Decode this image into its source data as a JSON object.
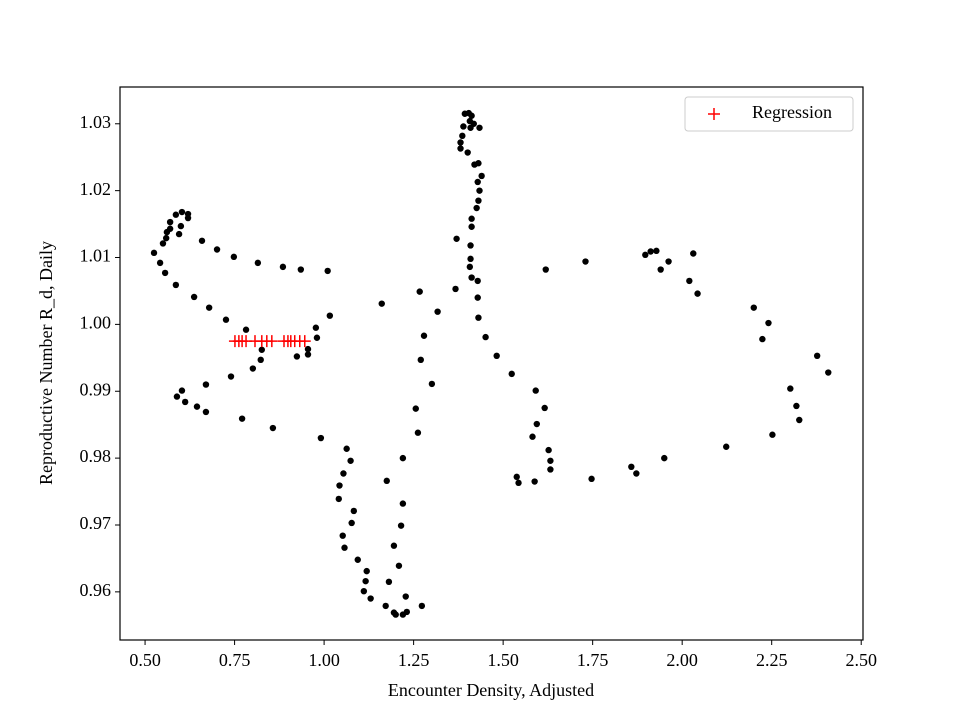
{
  "chart_data": {
    "type": "scatter",
    "xlabel": "Encounter Density, Adjusted",
    "ylabel": "Reproductive Number R_d, Daily",
    "xlim": [
      0.43,
      2.505
    ],
    "ylim": [
      0.9528,
      1.0355
    ],
    "xticks": [
      {
        "value": 0.5,
        "label": "0.50"
      },
      {
        "value": 0.75,
        "label": "0.75"
      },
      {
        "value": 1.0,
        "label": "1.00"
      },
      {
        "value": 1.25,
        "label": "1.25"
      },
      {
        "value": 1.5,
        "label": "1.50"
      },
      {
        "value": 1.75,
        "label": "1.75"
      },
      {
        "value": 2.0,
        "label": "2.00"
      },
      {
        "value": 2.25,
        "label": "2.25"
      },
      {
        "value": 2.5,
        "label": "2.50"
      }
    ],
    "yticks": [
      0.96,
      0.97,
      0.98,
      0.99,
      {
        "value": 1.0,
        "label": "1.00"
      },
      1.01,
      1.02,
      1.03
    ],
    "grid": false,
    "legend": "upper right",
    "series": [
      {
        "color": "#000000",
        "marker": "dot",
        "x": [
          0.525,
          0.542,
          0.556,
          0.55,
          0.559,
          0.561,
          0.57,
          0.57,
          0.586,
          0.603,
          0.62,
          0.62,
          0.6,
          0.595,
          0.659,
          0.701,
          0.748,
          0.815,
          0.885,
          0.935,
          1.01,
          0.586,
          0.637,
          0.679,
          0.726,
          0.782,
          1.016,
          0.977,
          0.98,
          0.955,
          0.955,
          0.924,
          0.826,
          0.823,
          0.801,
          0.74,
          0.67,
          0.603,
          0.589,
          0.612,
          0.645,
          0.67,
          0.771,
          0.857,
          0.991,
          1.063,
          1.074,
          1.054,
          1.043,
          1.041,
          1.083,
          1.077,
          1.052,
          1.057,
          1.094,
          1.119,
          1.116,
          1.111,
          1.13,
          1.172,
          1.195,
          1.2,
          1.22,
          1.231,
          1.228,
          1.273,
          1.181,
          1.209,
          1.195,
          1.215,
          1.22,
          1.175,
          1.22,
          1.262,
          1.256,
          1.301,
          1.27,
          1.279,
          1.317,
          1.267,
          1.161,
          1.367,
          1.37,
          1.381,
          1.381,
          1.386,
          1.389,
          1.393,
          1.404,
          1.412,
          1.407,
          1.418,
          1.434,
          1.409,
          1.401,
          1.42,
          1.431,
          1.44,
          1.429,
          1.434,
          1.431,
          1.426,
          1.412,
          1.412,
          1.409,
          1.409,
          1.407,
          1.412,
          1.429,
          1.429,
          1.431,
          1.451,
          1.482,
          1.524,
          1.591,
          1.616,
          1.594,
          1.582,
          1.627,
          1.632,
          1.632,
          1.538,
          1.543,
          1.588,
          1.747,
          1.858,
          1.872,
          1.95,
          2.123,
          2.252,
          2.327,
          2.319,
          2.302,
          2.408,
          2.377,
          2.241,
          2.224,
          2.2,
          2.043,
          2.02,
          2.031,
          1.962,
          1.94,
          1.928,
          1.912,
          1.897,
          1.73,
          1.619
        ],
        "values": [
          1.0107,
          1.0092,
          1.0077,
          1.0121,
          1.0129,
          1.0138,
          1.0143,
          1.0153,
          1.0164,
          1.0168,
          1.0165,
          1.0159,
          1.0147,
          1.0135,
          1.0125,
          1.0112,
          1.0101,
          1.0092,
          1.0086,
          1.0082,
          1.008,
          1.0059,
          1.0041,
          1.0025,
          1.0007,
          0.9992,
          1.0013,
          0.9995,
          0.998,
          0.9963,
          0.9955,
          0.9952,
          0.9962,
          0.9947,
          0.9934,
          0.9922,
          0.991,
          0.9901,
          0.9892,
          0.9884,
          0.9877,
          0.9869,
          0.9859,
          0.9845,
          0.983,
          0.9814,
          0.9796,
          0.9777,
          0.9759,
          0.9739,
          0.9721,
          0.9703,
          0.9684,
          0.9666,
          0.9648,
          0.9631,
          0.9616,
          0.9601,
          0.959,
          0.9579,
          0.9569,
          0.9566,
          0.9566,
          0.957,
          0.9593,
          0.9579,
          0.9615,
          0.9639,
          0.9669,
          0.9699,
          0.9732,
          0.9766,
          0.98,
          0.9838,
          0.9874,
          0.9911,
          0.9947,
          0.9983,
          1.0019,
          1.0049,
          1.0031,
          1.0053,
          1.0128,
          1.0263,
          1.0272,
          1.0282,
          1.0296,
          1.0315,
          1.0316,
          1.0312,
          1.0304,
          1.03,
          1.0294,
          1.0294,
          1.0257,
          1.0239,
          1.0241,
          1.0222,
          1.0213,
          1.02,
          1.0185,
          1.0174,
          1.0158,
          1.0146,
          1.0118,
          1.0098,
          1.0086,
          1.007,
          1.0065,
          1.004,
          1.001,
          0.9981,
          0.9953,
          0.9926,
          0.9901,
          0.9875,
          0.9851,
          0.9832,
          0.9812,
          0.9796,
          0.9783,
          0.9772,
          0.9763,
          0.9765,
          0.9769,
          0.9787,
          0.9777,
          0.98,
          0.9817,
          0.9835,
          0.9857,
          0.9878,
          0.9904,
          0.9928,
          0.9953,
          1.0002,
          0.9978,
          1.0025,
          1.0046,
          1.0065,
          1.0106,
          1.0094,
          1.0082,
          1.011,
          1.0109,
          1.0104,
          1.0094,
          1.0082
        ]
      },
      {
        "name": "Regression",
        "color": "#ff0000",
        "marker": "plus",
        "x": [
          0.751,
          0.762,
          0.771,
          0.782,
          0.807,
          0.826,
          0.84,
          0.854,
          0.888,
          0.899,
          0.907,
          0.918,
          0.932,
          0.946
        ],
        "values": [
          0.9975,
          0.9975,
          0.9975,
          0.9975,
          0.9975,
          0.9975,
          0.9975,
          0.9975,
          0.9975,
          0.9975,
          0.9975,
          0.9975,
          0.9975,
          0.9975
        ]
      }
    ]
  }
}
